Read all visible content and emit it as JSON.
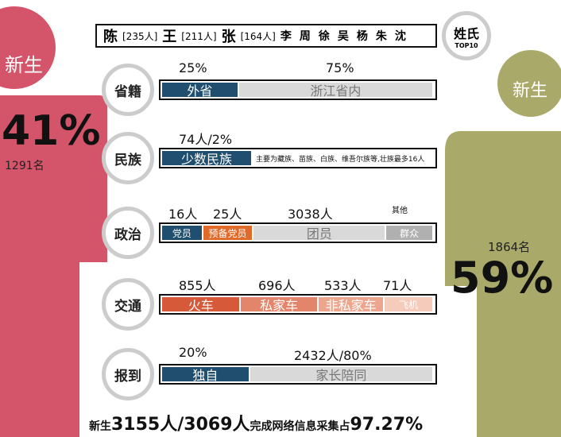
{
  "surnames": {
    "top3": [
      {
        "name": "陈",
        "count": "[235人]"
      },
      {
        "name": "王",
        "count": "[211人]"
      },
      {
        "name": "张",
        "count": "[164人]"
      }
    ],
    "others": [
      "李",
      "周",
      "徐",
      "吴",
      "杨",
      "朱",
      "沈"
    ]
  },
  "badge": {
    "title": "姓氏",
    "sub": "TOP10"
  },
  "left": {
    "label": "新生",
    "percent": "41%",
    "count": "1291名"
  },
  "right": {
    "label": "新生",
    "percent": "59%",
    "count": "1864名"
  },
  "rows": [
    {
      "label": "省籍",
      "tops": [
        "25%",
        "75%"
      ],
      "segments": [
        "外省",
        "浙江省内"
      ]
    },
    {
      "label": "民族",
      "tops": [
        "74人/2%"
      ],
      "segments": [
        "少数民族"
      ],
      "note": "主要为藏族、苗族、白族、维吾尔族等,壮族最多16人"
    },
    {
      "label": "政治",
      "tops": [
        "16人",
        "25人",
        "3038人",
        "其他"
      ],
      "segments": [
        "党员",
        "预备党员",
        "团员",
        "群众"
      ]
    },
    {
      "label": "交通",
      "tops": [
        "855人",
        "696人",
        "533人",
        "71人"
      ],
      "segments": [
        "火车",
        "私家车",
        "非私家车",
        "飞机"
      ]
    },
    {
      "label": "报到",
      "tops": [
        "20%",
        "2432人/80%"
      ],
      "segments": [
        "独自",
        "家长陪同"
      ]
    }
  ],
  "footer": [
    "新生",
    "3155人/3069人",
    "完成网络信息采集占",
    "97.27%"
  ]
}
